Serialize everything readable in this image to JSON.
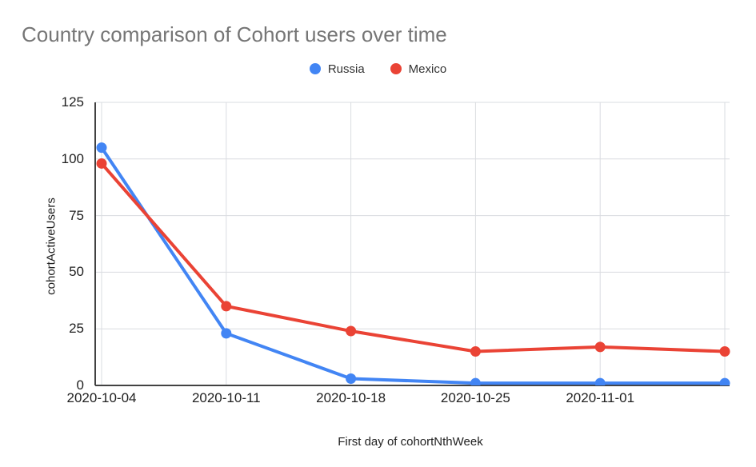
{
  "chart_data": {
    "type": "line",
    "title": "Country comparison of Cohort users over time",
    "xlabel": "First day of cohortNthWeek",
    "ylabel": "cohortActiveUsers",
    "categories": [
      "2020-10-04",
      "2020-10-11",
      "2020-10-18",
      "2020-10-25",
      "2020-11-01",
      ""
    ],
    "series": [
      {
        "name": "Russia",
        "color": "#4285F4",
        "values": [
          105,
          23,
          3,
          1,
          1,
          1
        ]
      },
      {
        "name": "Mexico",
        "color": "#EA4335",
        "values": [
          98,
          35,
          24,
          15,
          17,
          15
        ]
      }
    ],
    "ylim": [
      0,
      125
    ],
    "y_ticks": [
      0,
      25,
      50,
      75,
      100,
      125
    ],
    "grid": true,
    "legend_position": "top"
  },
  "style": {
    "title_color": "#757575",
    "tick_color": "#212121",
    "grid_color": "#dadce0",
    "axis_color": "#424242",
    "background": "#ffffff"
  }
}
